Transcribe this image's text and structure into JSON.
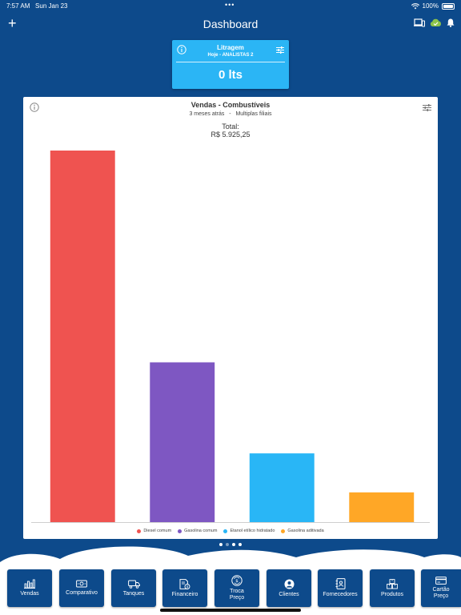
{
  "status_bar": {
    "time": "7:57 AM",
    "date": "Sun Jan 23",
    "dots": "•••",
    "battery": "100%"
  },
  "header": {
    "title": "Dashboard",
    "add_label": "+"
  },
  "liter_card": {
    "title": "Litragem",
    "subtitle": "Hoje - ANALISTAS 2",
    "value": "0 lts"
  },
  "chart_card": {
    "title": "Vendas - Combustíveis",
    "period": "3 meses atrás",
    "separator": "-",
    "scope": "Multiplas filiais",
    "total_label": "Total:",
    "total_value": "R$ 5.925,25"
  },
  "chart_data": {
    "type": "bar",
    "categories": [
      "Diesel comum",
      "Gasolina comum",
      "Etanol etílico hidratado",
      "Gasolina aditivada"
    ],
    "values": [
      100,
      43,
      18.5,
      8
    ],
    "colors": [
      "#ef5350",
      "#7e57c2",
      "#29b6f6",
      "#ffa726"
    ],
    "title": "Vendas - Combustíveis",
    "legend_position": "bottom",
    "grid": false
  },
  "pager": {
    "count": 4,
    "active": 0
  },
  "nav": [
    {
      "label": "Vendas",
      "icon": "chart-bars-icon"
    },
    {
      "label": "Comparativo",
      "icon": "money-icon"
    },
    {
      "label": "Tanques",
      "icon": "truck-icon"
    },
    {
      "label": "Financeiro",
      "icon": "money-file-icon"
    },
    {
      "label": "Troca Preço",
      "icon": "price-swap-icon"
    },
    {
      "label": "Clientes",
      "icon": "user-icon"
    },
    {
      "label": "Fornecedores",
      "icon": "contact-book-icon"
    },
    {
      "label": "Produtos",
      "icon": "boxes-icon"
    },
    {
      "label": "Cartão Preço",
      "icon": "card-icon"
    }
  ]
}
